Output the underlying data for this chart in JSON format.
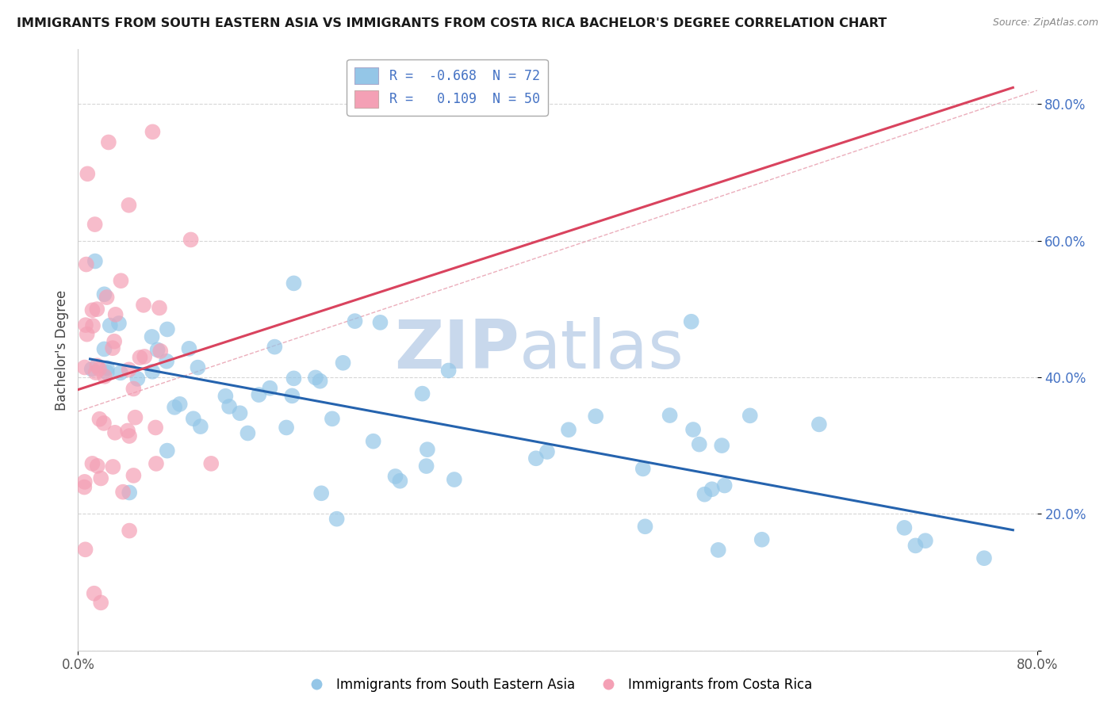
{
  "title": "IMMIGRANTS FROM SOUTH EASTERN ASIA VS IMMIGRANTS FROM COSTA RICA BACHELOR'S DEGREE CORRELATION CHART",
  "source": "Source: ZipAtlas.com",
  "ylabel": "Bachelor's Degree",
  "y_ticks": [
    0.0,
    0.2,
    0.4,
    0.6,
    0.8
  ],
  "y_tick_labels": [
    "",
    "20.0%",
    "40.0%",
    "60.0%",
    "80.0%"
  ],
  "xlim": [
    0.0,
    0.8
  ],
  "ylim": [
    0.05,
    0.88
  ],
  "legend_blue_label_r": "R = ",
  "legend_blue_r_val": "-0.668",
  "legend_blue_n": "N = 72",
  "legend_pink_label_r": "R = ",
  "legend_pink_r_val": "0.109",
  "legend_pink_n": "N = 50",
  "blue_color": "#94C6E7",
  "pink_color": "#F4A0B5",
  "blue_line_color": "#2563AE",
  "pink_line_color": "#D9435E",
  "diag_line_color": "#E8A0B0",
  "watermark_zip": "ZIP",
  "watermark_atlas": "atlas",
  "watermark_color": "#C8D8EC",
  "background_color": "#FFFFFF",
  "grid_color": "#CCCCCC",
  "blue_N": 72,
  "pink_N": 50,
  "blue_R": -0.668,
  "pink_R": 0.109
}
